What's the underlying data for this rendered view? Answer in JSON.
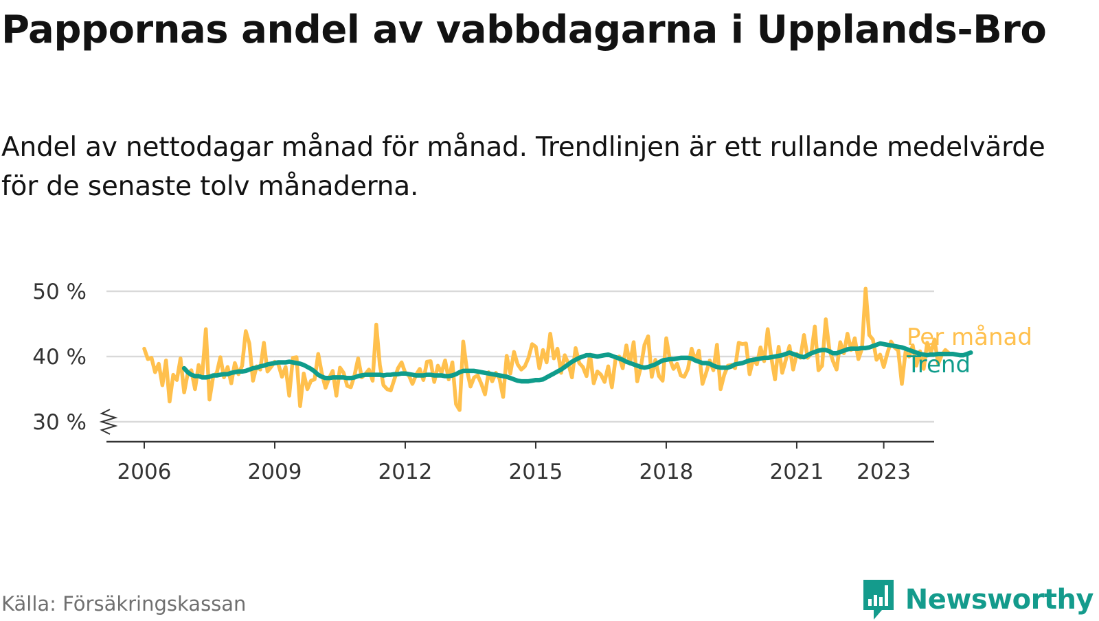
{
  "title": "Pappornas andel av vabbdagarna i Upplands-Bro",
  "subtitle": "Andel av nettodagar månad för månad. Trendlinjen är ett rullande medelvärde för de senaste tolv månaderna.",
  "source": "Källa: Försäkringskassan",
  "brand": "Newsworthy",
  "colors": {
    "per_month": "#ffc04d",
    "trend": "#0f9c8b",
    "grid": "#d9d9d9",
    "axis": "#333333",
    "brand": "#149b8c"
  },
  "chart_data": {
    "type": "line",
    "yticks": [
      30,
      40,
      50
    ],
    "ytick_labels": [
      "30 %",
      "40 %",
      "50 %"
    ],
    "ylim": [
      27,
      52
    ],
    "xticks": [
      2006,
      2009,
      2012,
      2015,
      2018,
      2021,
      2023
    ],
    "xtick_labels": [
      "2006",
      "2009",
      "2012",
      "2015",
      "2018",
      "2021",
      "2023"
    ],
    "xlim": [
      2005.3,
      2024.4
    ],
    "axis_break": true,
    "grid": true,
    "legend": "right-end labels",
    "series": [
      {
        "name": "Per månad",
        "color": "#ffc04d",
        "start": "2006-01",
        "values": [
          41.2,
          39.6,
          39.8,
          37.6,
          38.9,
          35.6,
          39.4,
          33.1,
          37.2,
          36.4,
          39.7,
          34.5,
          37.4,
          37.9,
          35.0,
          38.7,
          37.1,
          44.2,
          33.4,
          36.9,
          37.5,
          39.9,
          36.8,
          38.4,
          35.9,
          39.0,
          37.3,
          38.6,
          43.9,
          42.0,
          36.3,
          38.5,
          38.0,
          42.1,
          37.7,
          38.4,
          39.2,
          38.8,
          36.9,
          38.4,
          34.0,
          39.8,
          39.9,
          32.4,
          37.4,
          35.0,
          36.3,
          36.5,
          40.4,
          37.4,
          35.2,
          36.7,
          37.8,
          34.0,
          38.3,
          37.5,
          35.5,
          35.3,
          37.1,
          39.7,
          36.8,
          37.3,
          38.0,
          36.3,
          44.9,
          38.7,
          35.6,
          35.0,
          34.8,
          36.5,
          38.2,
          39.1,
          37.5,
          37.1,
          35.8,
          37.2,
          38.1,
          36.4,
          39.2,
          39.3,
          36.1,
          38.6,
          37.5,
          39.4,
          36.5,
          39.1,
          32.7,
          31.8,
          42.3,
          38.0,
          35.4,
          36.8,
          37.1,
          35.8,
          34.2,
          37.6,
          36.2,
          37.5,
          36.6,
          33.8,
          40.1,
          37.4,
          40.7,
          38.8,
          38.0,
          38.5,
          39.8,
          41.9,
          41.5,
          38.2,
          41.0,
          39.1,
          43.5,
          39.7,
          41.2,
          37.5,
          40.2,
          38.9,
          36.8,
          41.3,
          39.0,
          38.4,
          37.0,
          40.3,
          35.9,
          37.7,
          37.2,
          36.1,
          38.5,
          35.3,
          39.6,
          40.0,
          38.2,
          41.7,
          38.9,
          42.2,
          36.2,
          38.4,
          41.8,
          43.1,
          36.9,
          39.5,
          37.0,
          36.3,
          42.8,
          39.6,
          38.1,
          38.9,
          37.1,
          36.9,
          38.1,
          41.2,
          39.4,
          40.9,
          35.8,
          37.5,
          39.4,
          37.9,
          41.8,
          35.0,
          37.2,
          38.6,
          38.7,
          38.2,
          42.1,
          41.9,
          42.0,
          37.3,
          39.6,
          38.8,
          41.4,
          39.3,
          44.2,
          39.8,
          36.5,
          41.5,
          37.5,
          39.5,
          41.6,
          38.0,
          40.4,
          39.8,
          43.3,
          39.8,
          40.5,
          44.6,
          37.9,
          38.6,
          45.7,
          41.1,
          39.3,
          38.0,
          42.2,
          40.5,
          43.5,
          41.0,
          42.8,
          39.6,
          41.2,
          50.4,
          43.3,
          42.6,
          39.5,
          40.3,
          38.4,
          40.5,
          42.3,
          41.4,
          40.9,
          35.8,
          40.7,
          40.0,
          41.7,
          38.6,
          40.8,
          38.1,
          42.1,
          40.5,
          42.6,
          38.9,
          40.2,
          41.0,
          40.5
        ]
      },
      {
        "name": "Trend",
        "color": "#0f9c8b",
        "start": "2006-12",
        "values": [
          38.2,
          37.6,
          37.2,
          37.0,
          37.0,
          36.8,
          36.8,
          36.9,
          37.1,
          37.1,
          37.2,
          37.3,
          37.3,
          37.5,
          37.6,
          37.7,
          37.7,
          37.8,
          38.0,
          38.2,
          38.3,
          38.5,
          38.6,
          38.8,
          38.9,
          39.0,
          39.1,
          39.1,
          39.1,
          39.2,
          39.1,
          39.0,
          38.9,
          38.7,
          38.4,
          38.1,
          37.7,
          37.2,
          36.9,
          36.7,
          36.7,
          36.8,
          36.8,
          36.8,
          36.8,
          36.7,
          36.7,
          36.8,
          37.0,
          37.1,
          37.2,
          37.2,
          37.2,
          37.2,
          37.2,
          37.1,
          37.2,
          37.2,
          37.3,
          37.3,
          37.4,
          37.4,
          37.3,
          37.2,
          37.1,
          37.1,
          37.1,
          37.2,
          37.2,
          37.1,
          37.1,
          37.1,
          37.0,
          37.0,
          37.1,
          37.3,
          37.6,
          37.8,
          37.8,
          37.8,
          37.8,
          37.7,
          37.6,
          37.5,
          37.4,
          37.3,
          37.2,
          37.1,
          37.0,
          36.9,
          36.7,
          36.5,
          36.3,
          36.2,
          36.2,
          36.2,
          36.3,
          36.4,
          36.4,
          36.5,
          36.8,
          37.1,
          37.4,
          37.7,
          38.0,
          38.4,
          38.8,
          39.2,
          39.5,
          39.8,
          40.0,
          40.2,
          40.2,
          40.1,
          40.0,
          40.1,
          40.2,
          40.3,
          40.1,
          39.9,
          39.7,
          39.5,
          39.2,
          39.0,
          38.8,
          38.6,
          38.4,
          38.3,
          38.4,
          38.6,
          38.8,
          39.1,
          39.4,
          39.5,
          39.6,
          39.6,
          39.7,
          39.8,
          39.8,
          39.8,
          39.7,
          39.4,
          39.2,
          39.0,
          39.0,
          38.9,
          38.6,
          38.4,
          38.3,
          38.3,
          38.3,
          38.5,
          38.8,
          38.9,
          39.0,
          39.2,
          39.4,
          39.5,
          39.6,
          39.7,
          39.8,
          39.8,
          39.9,
          40.0,
          40.1,
          40.2,
          40.4,
          40.6,
          40.4,
          40.2,
          40.0,
          39.9,
          40.2,
          40.5,
          40.7,
          40.9,
          41.0,
          41.0,
          40.8,
          40.5,
          40.5,
          40.7,
          40.9,
          41.1,
          41.2,
          41.2,
          41.2,
          41.3,
          41.3,
          41.4,
          41.6,
          41.8,
          42.0,
          41.9,
          41.8,
          41.7,
          41.6,
          41.5,
          41.4,
          41.2,
          41.0,
          40.8,
          40.6,
          40.4,
          40.3,
          40.2,
          40.3,
          40.3,
          40.4,
          40.4,
          40.4,
          40.4,
          40.4,
          40.3,
          40.2,
          40.2,
          40.4,
          40.6
        ]
      }
    ]
  }
}
